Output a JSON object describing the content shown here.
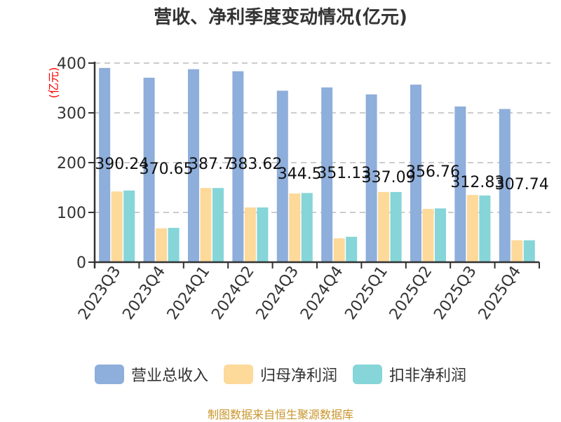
{
  "title": "营收、净利季度变动情况(亿元)",
  "source_note": "制图数据来自恒生聚源数据库",
  "colors": {
    "revenue": "#8eaedb",
    "net_profit_parent": "#fdd99a",
    "net_profit_deducted": "#86d5d8",
    "unit_label": "#ff0000"
  },
  "legend": [
    {
      "label": "营业总收入",
      "color": "#8eaedb"
    },
    {
      "label": "归母净利润",
      "color": "#fdd99a"
    },
    {
      "label": "扣非净利润",
      "color": "#86d5d8"
    }
  ],
  "chart_data": {
    "type": "bar",
    "title": "营收、净利季度变动情况(亿元)",
    "xlabel": "",
    "ylabel": "(亿元)",
    "ylim": [
      0,
      400
    ],
    "yticks": [
      0,
      100,
      200,
      300,
      400
    ],
    "grid": "horizontal dashed",
    "legend_position": "bottom",
    "categories": [
      "2023Q3",
      "2023Q4",
      "2024Q1",
      "2024Q2",
      "2024Q3",
      "2024Q4",
      "2025Q1",
      "2025Q2",
      "2025Q3",
      "2025Q4"
    ],
    "series": [
      {
        "name": "营业总收入",
        "values": [
          390.24,
          370.65,
          387.7,
          383.62,
          344.5,
          351.13,
          337.09,
          356.76,
          312.83,
          307.74
        ],
        "labels": [
          "390.24",
          "370.65",
          "387.7",
          "383.62",
          "344.5",
          "351.13",
          "337.09",
          "356.76",
          "312.83",
          "307.74"
        ]
      },
      {
        "name": "归母净利润",
        "values": [
          142,
          68,
          149,
          110,
          138,
          48,
          141,
          107,
          135,
          44
        ]
      },
      {
        "name": "扣非净利润",
        "values": [
          144,
          69,
          149,
          110,
          139,
          51,
          141,
          108,
          134,
          44
        ]
      }
    ]
  }
}
